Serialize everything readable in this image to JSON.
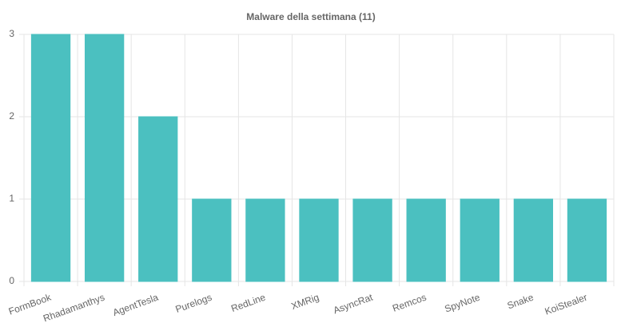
{
  "chart_data": {
    "type": "bar",
    "title": "Malware della settimana (11)",
    "categories": [
      "FormBook",
      "Rhadamanthys",
      "AgentTesla",
      "Purelogs",
      "RedLine",
      "XMRig",
      "AsyncRat",
      "Remcos",
      "SpyNote",
      "Snake",
      "KoiStealer"
    ],
    "values": [
      3,
      3,
      2,
      1,
      1,
      1,
      1,
      1,
      1,
      1,
      1
    ],
    "color": "#4bc0c0",
    "ylim": [
      0,
      3
    ],
    "yticks": [
      0,
      1,
      2,
      3
    ],
    "grid": true
  }
}
